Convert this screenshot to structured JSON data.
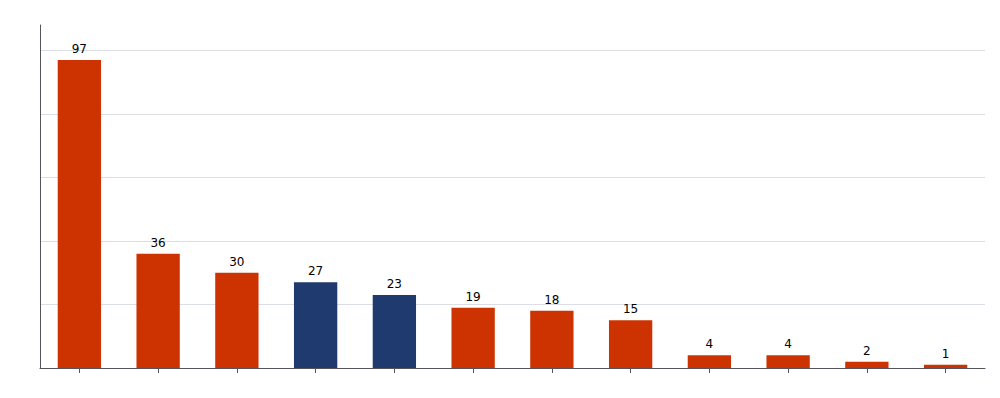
{
  "chart_data": {
    "type": "bar",
    "categories": [
      null,
      null,
      null,
      null,
      null,
      null,
      null,
      null,
      null,
      null,
      null,
      null
    ],
    "values": [
      97,
      36,
      30,
      27,
      23,
      19,
      18,
      15,
      4,
      4,
      2,
      1
    ],
    "colors": [
      "#CC3300",
      "#CC3300",
      "#CC3300",
      "#1F3A6E",
      "#1F3A6E",
      "#CC3300",
      "#CC3300",
      "#CC3300",
      "#CC3300",
      "#CC3300",
      "#CC3300",
      "#CC3300"
    ],
    "ylim": [
      0,
      108
    ],
    "yticks": [
      20,
      40,
      60,
      80,
      100
    ],
    "grid": true,
    "data_labels": true,
    "tick_labels": false
  }
}
